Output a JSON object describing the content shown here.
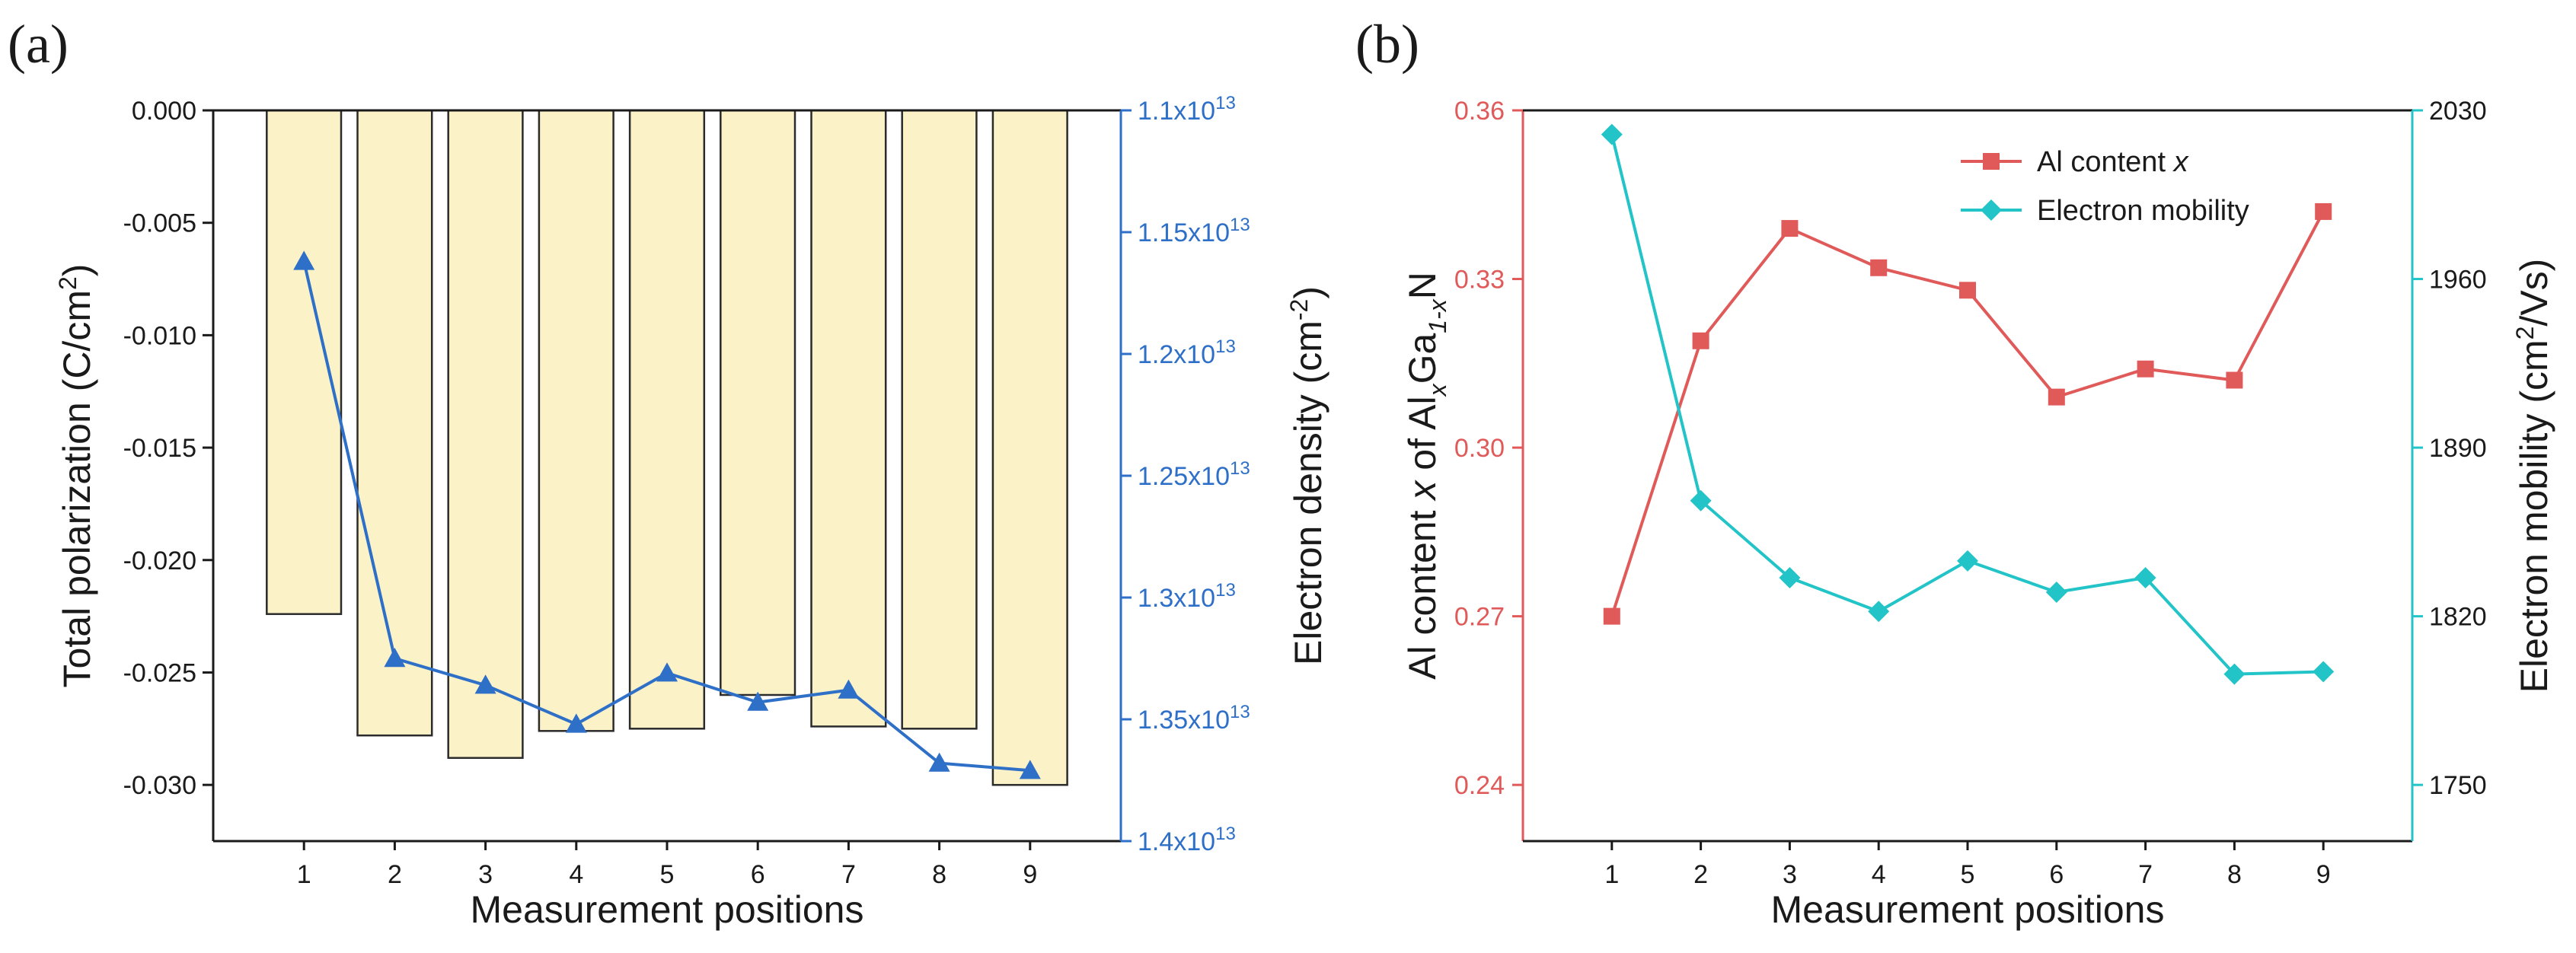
{
  "colors": {
    "bar_fill": "#FBF2C8",
    "bar_stroke": "#2b2b2b",
    "blue": "#2E6FC7",
    "red": "#E05A5A",
    "cyan": "#22C4C8",
    "axis": "#1a1a1a"
  },
  "chart_data": [
    {
      "id": "a",
      "panel_label": "(a)",
      "type": "bar+line",
      "xlabel": "Measurement positions",
      "categories": [
        "1",
        "2",
        "3",
        "4",
        "5",
        "6",
        "7",
        "8",
        "9"
      ],
      "left_axis": {
        "label": "Total polarization (C/cm²)",
        "label_main": "Total polarization (C/cm",
        "label_sup": "2",
        "label_end": ")",
        "ylim": [
          0.0,
          -0.0325
        ],
        "ticks": [
          0.0,
          -0.005,
          -0.01,
          -0.015,
          -0.02,
          -0.025,
          -0.03
        ],
        "tick_labels": [
          "0.000",
          "-0.005",
          "-0.010",
          "-0.015",
          "-0.020",
          "-0.025",
          "-0.030"
        ]
      },
      "right_axis": {
        "label": "Electron density (cm⁻²)",
        "label_main": "Electron density (cm",
        "label_sup": "-2",
        "label_end": ")",
        "ylim": [
          11000000000000.0,
          14000000000000.0
        ],
        "ticks": [
          11000000000000.0,
          11500000000000.0,
          12000000000000.0,
          12500000000000.0,
          13000000000000.0,
          13500000000000.0,
          14000000000000.0
        ],
        "tick_mantissas": [
          "1.1x10",
          "1.15x10",
          "1.2x10",
          "1.25x10",
          "1.3x10",
          "1.35x10",
          "1.4x10"
        ],
        "tick_exponent": "13"
      },
      "series": [
        {
          "name": "Total polarization",
          "kind": "bar",
          "axis": "left",
          "values": [
            -0.0224,
            -0.0278,
            -0.0288,
            -0.0276,
            -0.0275,
            -0.026,
            -0.0274,
            -0.0275,
            -0.03
          ]
        },
        {
          "name": "Electron density",
          "kind": "line",
          "axis": "right",
          "marker": "triangle",
          "values": [
            11620000000000.0,
            13250000000000.0,
            13360000000000.0,
            13520000000000.0,
            13310000000000.0,
            13430000000000.0,
            13380000000000.0,
            13680000000000.0,
            13710000000000.0
          ]
        }
      ]
    },
    {
      "id": "b",
      "panel_label": "(b)",
      "type": "line",
      "xlabel": "Measurement positions",
      "categories": [
        "1",
        "2",
        "3",
        "4",
        "5",
        "6",
        "7",
        "8",
        "9"
      ],
      "left_axis": {
        "label": "Al content x of AlxGa1-xN",
        "label_parts": [
          "Al content ",
          "x",
          " of Al",
          "x",
          "Ga",
          "1-x",
          "N"
        ],
        "ylim": [
          0.23,
          0.36
        ],
        "ticks": [
          0.24,
          0.27,
          0.3,
          0.33,
          0.36
        ],
        "tick_labels": [
          "0.24",
          "0.27",
          "0.30",
          "0.33",
          "0.36"
        ]
      },
      "right_axis": {
        "label": "Electron mobility (cm²/Vs)",
        "label_main": "Electron mobility (cm",
        "label_sup": "2",
        "label_end": "/Vs)",
        "ylim": [
          1726.67,
          2030
        ],
        "ticks": [
          1750,
          1820,
          1890,
          1960,
          2030
        ],
        "tick_labels": [
          "1750",
          "1820",
          "1890",
          "1960",
          "2030"
        ]
      },
      "legend": {
        "position": "top-right",
        "entries": [
          {
            "text": "Al content ",
            "italic": "x",
            "series": 0
          },
          {
            "text": "Electron mobility",
            "italic": "",
            "series": 1
          }
        ]
      },
      "series": [
        {
          "name": "Al content x",
          "axis": "left",
          "marker": "square",
          "values": [
            0.27,
            0.319,
            0.339,
            0.332,
            0.328,
            0.309,
            0.314,
            0.312,
            0.342
          ]
        },
        {
          "name": "Electron mobility",
          "axis": "right",
          "marker": "diamond",
          "values": [
            2020,
            1868,
            1836,
            1822,
            1843,
            1830,
            1836,
            1796,
            1797
          ]
        }
      ]
    }
  ]
}
